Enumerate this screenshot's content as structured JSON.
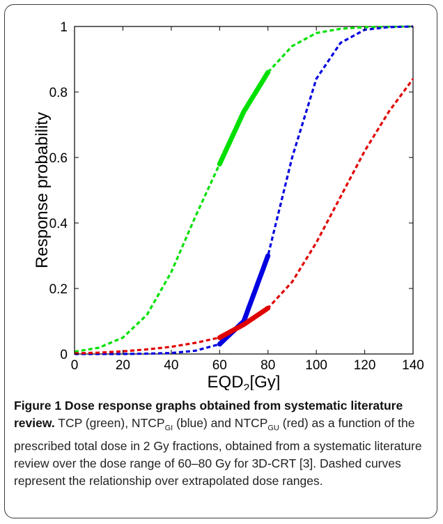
{
  "chart_data": {
    "type": "line",
    "xlabel": "EQD",
    "xlabel_sub": "2",
    "xlabel_unit": "[Gy]",
    "ylabel": "Response probability",
    "xlim": [
      0,
      140
    ],
    "ylim": [
      0,
      1
    ],
    "x_ticks": [
      "0",
      "20",
      "40",
      "60",
      "80",
      "100",
      "120",
      "140"
    ],
    "y_ticks": [
      "0",
      "0.2",
      "0.4",
      "0.6",
      "0.8",
      "1"
    ],
    "grid": false,
    "legend": "none",
    "solid_range": [
      60,
      80
    ],
    "series": [
      {
        "color": "#00e000",
        "x": [
          0,
          10,
          20,
          30,
          40,
          50,
          60,
          70,
          80,
          90,
          100,
          110,
          120,
          130,
          140
        ],
        "y": [
          0.007,
          0.019,
          0.05,
          0.12,
          0.25,
          0.42,
          0.58,
          0.74,
          0.86,
          0.94,
          0.98,
          0.993,
          0.998,
          0.999,
          1.0
        ]
      },
      {
        "color": "#0000e0",
        "x": [
          0,
          10,
          20,
          30,
          40,
          50,
          60,
          70,
          80,
          90,
          100,
          110,
          120,
          130,
          140
        ],
        "y": [
          0.0,
          0.0,
          0.0,
          0.001,
          0.003,
          0.01,
          0.03,
          0.1,
          0.3,
          0.6,
          0.84,
          0.95,
          0.99,
          0.998,
          1.0
        ]
      },
      {
        "color": "#e00000",
        "x": [
          0,
          10,
          20,
          30,
          40,
          50,
          60,
          70,
          80,
          90,
          100,
          110,
          120,
          130,
          140
        ],
        "y": [
          0.002,
          0.004,
          0.008,
          0.014,
          0.022,
          0.034,
          0.05,
          0.09,
          0.14,
          0.22,
          0.34,
          0.48,
          0.62,
          0.74,
          0.84
        ]
      }
    ]
  },
  "caption": {
    "title": "Figure 1 Dose response graphs obtained from systematic literature review.",
    "t1": " TCP (green), NTCP",
    "sub1": "GI",
    "t2": " (blue) and NTCP",
    "sub2": "GU",
    "t3": " (red) as a function of the prescribed total dose in 2 Gy fractions, obtained from a systematic literature review over the dose range of 60–80 Gy for 3D-CRT [3]. Dashed curves represent the relationship over extrapolated dose ranges."
  }
}
